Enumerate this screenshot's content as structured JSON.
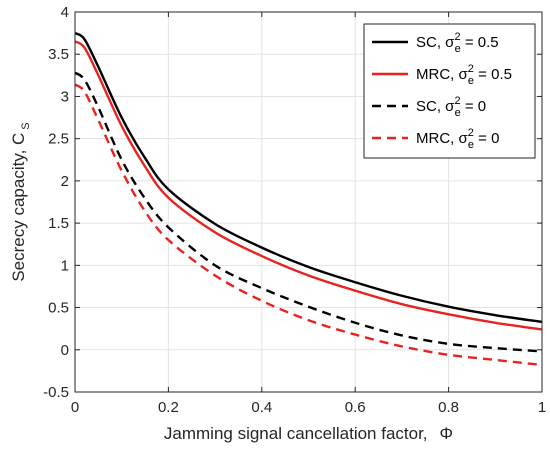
{
  "chart_data": {
    "type": "line",
    "xlabel_text": "Jamming signal cancellation factor,",
    "xlabel_symbol": "Φ",
    "ylabel_text": "Secrecy capacity, C",
    "ylabel_sub": "S",
    "xlim": [
      0,
      1
    ],
    "ylim": [
      -0.5,
      4
    ],
    "xticks": [
      0,
      0.2,
      0.4,
      0.6,
      0.8,
      1
    ],
    "xtick_labels": [
      "0",
      "0.2",
      "0.4",
      "0.6",
      "0.8",
      "1"
    ],
    "yticks": [
      -0.5,
      0,
      0.5,
      1,
      1.5,
      2,
      2.5,
      3,
      3.5,
      4
    ],
    "ytick_labels": [
      "-0.5",
      "0",
      "0.5",
      "1",
      "1.5",
      "2",
      "2.5",
      "3",
      "3.5",
      "4"
    ],
    "grid": true,
    "legend_position": "top-right",
    "x": [
      0,
      0.02,
      0.05,
      0.1,
      0.15,
      0.2,
      0.3,
      0.4,
      0.5,
      0.6,
      0.7,
      0.8,
      0.9,
      1.0
    ],
    "series": [
      {
        "name": "SC, σe² = 0.5",
        "legend_main": "SC, σ",
        "legend_sub": "e",
        "legend_sup": "2",
        "legend_tail": " = 0.5",
        "color": "#000000",
        "dash": "solid",
        "values": [
          3.75,
          3.68,
          3.35,
          2.75,
          2.27,
          1.9,
          1.49,
          1.21,
          0.98,
          0.8,
          0.64,
          0.51,
          0.41,
          0.33
        ]
      },
      {
        "name": "MRC, σe² = 0.5",
        "legend_main": "MRC, σ",
        "legend_sub": "e",
        "legend_sup": "2",
        "legend_tail": " = 0.5",
        "color": "#e8231f",
        "dash": "solid",
        "values": [
          3.65,
          3.58,
          3.25,
          2.65,
          2.17,
          1.8,
          1.39,
          1.11,
          0.88,
          0.7,
          0.54,
          0.42,
          0.32,
          0.24
        ]
      },
      {
        "name": "SC, σe² = 0",
        "legend_main": "SC, σ",
        "legend_sub": "e",
        "legend_sup": "2",
        "legend_tail": " = 0",
        "color": "#000000",
        "dash": "dashed",
        "values": [
          3.28,
          3.2,
          2.87,
          2.25,
          1.79,
          1.45,
          1.0,
          0.73,
          0.51,
          0.32,
          0.17,
          0.07,
          0.02,
          -0.02
        ]
      },
      {
        "name": "MRC, σe² = 0",
        "legend_main": "MRC, σ",
        "legend_sub": "e",
        "legend_sup": "2",
        "legend_tail": " = 0",
        "color": "#e8231f",
        "dash": "dashed",
        "values": [
          3.14,
          3.06,
          2.72,
          2.12,
          1.64,
          1.3,
          0.88,
          0.58,
          0.35,
          0.18,
          0.04,
          -0.06,
          -0.12,
          -0.18
        ]
      }
    ]
  }
}
